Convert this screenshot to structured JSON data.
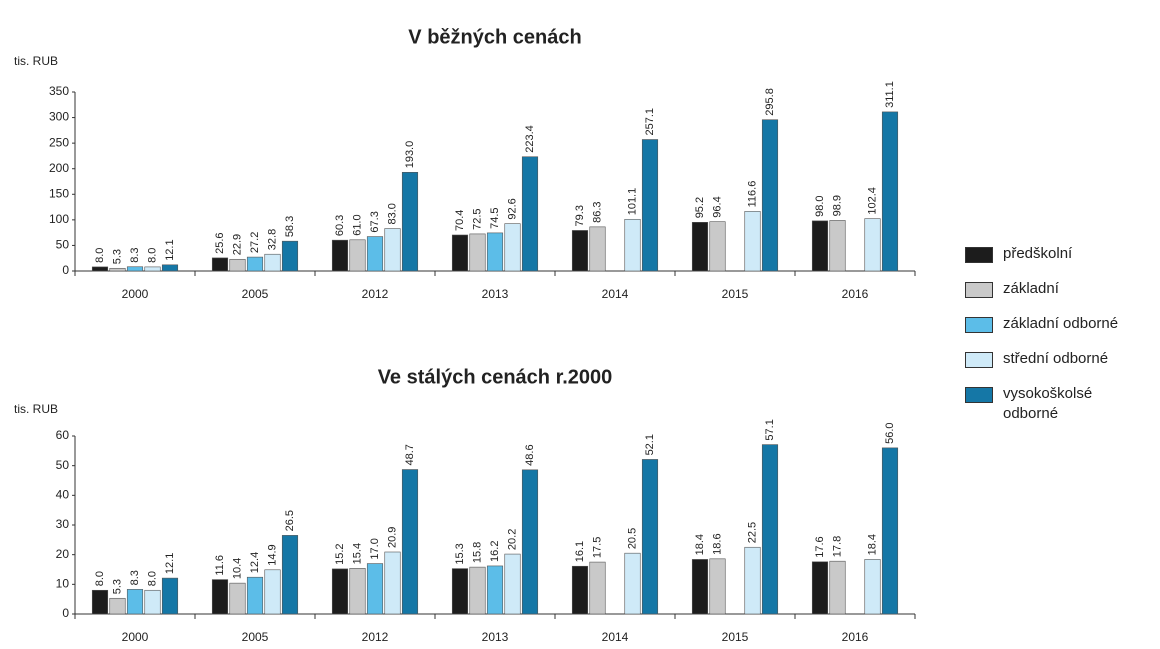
{
  "chart_data": [
    {
      "type": "bar",
      "title": "V běžných cenách",
      "y_label": "tis. RUB",
      "categories": [
        "2000",
        "2005",
        "2012",
        "2013",
        "2014",
        "2015",
        "2016"
      ],
      "ylim": [
        0,
        350
      ],
      "yticks": [
        0,
        50,
        100,
        150,
        200,
        250,
        300,
        350
      ],
      "series": [
        {
          "name": "předškolní",
          "color": "#1c1c1c",
          "values": [
            8.0,
            25.6,
            60.3,
            70.4,
            79.3,
            95.2,
            98.0
          ],
          "value_labels": [
            "8.0",
            "25.6",
            "60.3",
            "70.4",
            "79.3",
            "95.2",
            "98.0"
          ]
        },
        {
          "name": "základní",
          "color": "#c9c9c9",
          "values": [
            5.3,
            22.9,
            61.0,
            72.5,
            86.3,
            96.4,
            98.9
          ],
          "value_labels": [
            "5.3",
            "22.9",
            "61.0",
            "72.5",
            "86.3",
            "96.4",
            "98.9"
          ]
        },
        {
          "name": "základní odborné",
          "color": "#5cbde8",
          "values": [
            8.3,
            27.2,
            67.3,
            74.5,
            null,
            null,
            null
          ],
          "value_labels": [
            "8.3",
            "27.2",
            "67.3",
            "74.5",
            null,
            null,
            null
          ]
        },
        {
          "name": "střední odborné",
          "color": "#cfeaf8",
          "values": [
            8.0,
            32.8,
            83.0,
            92.6,
            101.1,
            116.6,
            102.4
          ],
          "value_labels": [
            "8.0",
            "32.8",
            "83.0",
            "92.6",
            "101.1",
            "116.6",
            "102.4"
          ]
        },
        {
          "name": "vysokoškolsé odborné",
          "color": "#1577a6",
          "values": [
            12.1,
            58.3,
            193.0,
            223.4,
            257.1,
            295.8,
            311.1
          ],
          "value_labels": [
            "12.1",
            "58.3",
            "193.0",
            "223.4",
            "257.1",
            "295.8",
            "311.1"
          ]
        }
      ]
    },
    {
      "type": "bar",
      "title": "Ve stálých cenách r.2000",
      "y_label": "tis. RUB",
      "categories": [
        "2000",
        "2005",
        "2012",
        "2013",
        "2014",
        "2015",
        "2016"
      ],
      "ylim": [
        0,
        60
      ],
      "yticks": [
        0,
        10,
        20,
        30,
        40,
        50,
        60
      ],
      "series": [
        {
          "color": "#1c1c1c",
          "values": [
            8.0,
            11.6,
            15.2,
            15.3,
            16.1,
            18.4,
            17.6
          ],
          "value_labels": [
            "8.0",
            "11.6",
            "15.2",
            "15.3",
            "16.1",
            "18.4",
            "17.6"
          ]
        },
        {
          "color": "#c9c9c9",
          "values": [
            5.3,
            10.4,
            15.4,
            15.8,
            17.5,
            18.6,
            17.8
          ],
          "value_labels": [
            "5.3",
            "10.4",
            "15.4",
            "15.8",
            "17.5",
            "18.6",
            "17.8"
          ]
        },
        {
          "color": "#5cbde8",
          "values": [
            8.3,
            12.4,
            17.0,
            16.2,
            null,
            null,
            null
          ],
          "value_labels": [
            "8.3",
            "12.4",
            "17.0",
            "16.2",
            null,
            null,
            null
          ]
        },
        {
          "color": "#cfeaf8",
          "values": [
            8.0,
            14.9,
            20.9,
            20.2,
            20.5,
            22.5,
            18.4
          ],
          "value_labels": [
            "8.0",
            "14.9",
            "20.9",
            "20.2",
            "20.5",
            "22.5",
            "18.4"
          ]
        },
        {
          "color": "#1577a6",
          "values": [
            12.1,
            26.5,
            48.7,
            48.6,
            52.1,
            57.1,
            56.0
          ],
          "value_labels": [
            "12.1",
            "26.5",
            "48.7",
            "48.6",
            "52.1",
            "57.1",
            "56.0"
          ]
        }
      ]
    }
  ]
}
